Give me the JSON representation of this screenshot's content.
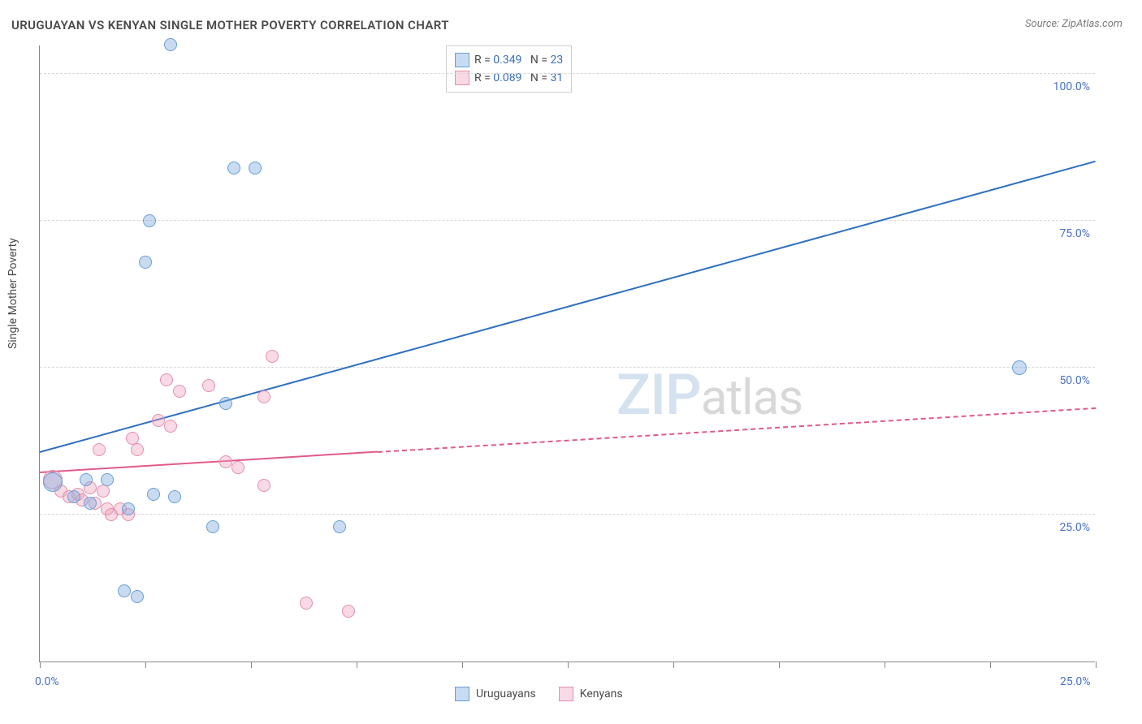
{
  "title": "URUGUAYAN VS KENYAN SINGLE MOTHER POVERTY CORRELATION CHART",
  "source_label": "Source: ZipAtlas.com",
  "ylabel": "Single Mother Poverty",
  "watermark": {
    "zip": "ZIP",
    "atlas": "atlas"
  },
  "colors": {
    "series_a_fill": "rgba(133,176,224,0.45)",
    "series_a_stroke": "#6a9fd4",
    "series_a_line": "#2e6fc0",
    "series_b_fill": "rgba(240,160,185,0.40)",
    "series_b_stroke": "#e48fae",
    "series_b_line": "#e05a8a",
    "axis_text": "#4a72c4",
    "grid": "#d8d8d8"
  },
  "chart": {
    "type": "scatter",
    "xlim": [
      0,
      25
    ],
    "ylim": [
      0,
      105
    ],
    "grid_y": [
      25,
      50,
      75,
      100
    ],
    "yticks": [
      {
        "v": 25,
        "label": "25.0%"
      },
      {
        "v": 50,
        "label": "50.0%"
      },
      {
        "v": 75,
        "label": "75.0%"
      },
      {
        "v": 100,
        "label": "100.0%"
      }
    ],
    "xticks_major": [
      0,
      2.5,
      5,
      7.5,
      10,
      12.5,
      15,
      17.5,
      20,
      22.5,
      25
    ],
    "xtick_labels": [
      {
        "v": 0,
        "label": "0.0%"
      },
      {
        "v": 25,
        "label": "25.0%"
      }
    ],
    "marker_radius": 8,
    "marker_border": 1.2,
    "trend_line_width": 2
  },
  "series_a": {
    "name": "Uruguayans",
    "trend": {
      "x1": 0,
      "y1": 35.5,
      "x2": 25,
      "y2": 85,
      "solid_until_x": 25
    },
    "points": [
      {
        "x": 3.1,
        "y": 105,
        "r": 8
      },
      {
        "x": 4.6,
        "y": 84,
        "r": 8
      },
      {
        "x": 5.1,
        "y": 84,
        "r": 8
      },
      {
        "x": 2.6,
        "y": 75,
        "r": 8
      },
      {
        "x": 2.5,
        "y": 68,
        "r": 8
      },
      {
        "x": 23.2,
        "y": 50,
        "r": 9
      },
      {
        "x": 4.4,
        "y": 44,
        "r": 8
      },
      {
        "x": 1.1,
        "y": 31,
        "r": 8
      },
      {
        "x": 1.6,
        "y": 31,
        "r": 8
      },
      {
        "x": 3.2,
        "y": 28,
        "r": 8
      },
      {
        "x": 2.7,
        "y": 28.5,
        "r": 8
      },
      {
        "x": 2.1,
        "y": 26,
        "r": 8
      },
      {
        "x": 4.1,
        "y": 23,
        "r": 8
      },
      {
        "x": 7.1,
        "y": 23,
        "r": 8
      },
      {
        "x": 2.0,
        "y": 12,
        "r": 8
      },
      {
        "x": 2.3,
        "y": 11,
        "r": 8
      },
      {
        "x": 0.3,
        "y": 30.5,
        "r": 12
      },
      {
        "x": 1.2,
        "y": 27,
        "r": 8
      },
      {
        "x": 0.8,
        "y": 28,
        "r": 8
      }
    ]
  },
  "series_b": {
    "name": "Kenyans",
    "trend": {
      "x1": 0,
      "y1": 32,
      "x2": 25,
      "y2": 43,
      "solid_until_x": 8.0
    },
    "points": [
      {
        "x": 5.5,
        "y": 52,
        "r": 8
      },
      {
        "x": 3.3,
        "y": 46,
        "r": 8
      },
      {
        "x": 4.0,
        "y": 47,
        "r": 8
      },
      {
        "x": 3.0,
        "y": 48,
        "r": 8
      },
      {
        "x": 5.3,
        "y": 45,
        "r": 8
      },
      {
        "x": 2.8,
        "y": 41,
        "r": 8
      },
      {
        "x": 3.1,
        "y": 40,
        "r": 8
      },
      {
        "x": 2.2,
        "y": 38,
        "r": 8
      },
      {
        "x": 2.3,
        "y": 36,
        "r": 8
      },
      {
        "x": 1.4,
        "y": 36,
        "r": 8
      },
      {
        "x": 4.4,
        "y": 34,
        "r": 8
      },
      {
        "x": 4.7,
        "y": 33,
        "r": 8
      },
      {
        "x": 0.5,
        "y": 29,
        "r": 8
      },
      {
        "x": 0.7,
        "y": 28,
        "r": 8
      },
      {
        "x": 0.9,
        "y": 28.5,
        "r": 8
      },
      {
        "x": 1.0,
        "y": 27.5,
        "r": 8
      },
      {
        "x": 1.2,
        "y": 29.5,
        "r": 8
      },
      {
        "x": 1.3,
        "y": 27,
        "r": 8
      },
      {
        "x": 1.6,
        "y": 26,
        "r": 8
      },
      {
        "x": 1.5,
        "y": 29,
        "r": 8
      },
      {
        "x": 1.7,
        "y": 25,
        "r": 8
      },
      {
        "x": 1.9,
        "y": 26,
        "r": 8
      },
      {
        "x": 2.1,
        "y": 25,
        "r": 8
      },
      {
        "x": 5.3,
        "y": 30,
        "r": 8
      },
      {
        "x": 6.3,
        "y": 10,
        "r": 8
      },
      {
        "x": 7.3,
        "y": 8.5,
        "r": 8
      },
      {
        "x": 0.3,
        "y": 31,
        "r": 12
      }
    ]
  },
  "correlation_legend": {
    "rows": [
      {
        "swatch": "a",
        "r_label": "R =",
        "r": "0.349",
        "n_label": "N =",
        "n": "23"
      },
      {
        "swatch": "b",
        "r_label": "R =",
        "r": "0.089",
        "n_label": "N =",
        "n": "31"
      }
    ]
  },
  "bottom_legend": {
    "items": [
      {
        "swatch": "a",
        "label": "Uruguayans"
      },
      {
        "swatch": "b",
        "label": "Kenyans"
      }
    ]
  }
}
